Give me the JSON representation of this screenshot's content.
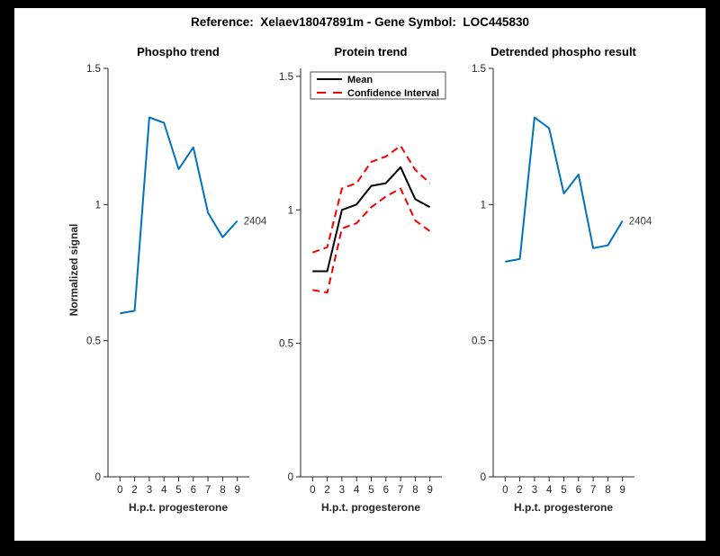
{
  "figure": {
    "title": "Reference:  Xelaev18047891m - Gene Symbol:  LOC445830",
    "background_color": "#000000",
    "canvas_color": "#ffffff"
  },
  "colors": {
    "line_blue": "#0072BD",
    "ci_red": "#F40000",
    "mean_black": "#000000",
    "axis_gray": "#262626",
    "annotation_gray": "#3d3d3d"
  },
  "chart_data": [
    {
      "type": "line",
      "title": "Phospho trend",
      "xlabel": "H.p.t. progesterone",
      "ylabel": "Normalized signal",
      "x_ticklabels": [
        "0",
        "2",
        "3",
        "4",
        "5",
        "6",
        "7",
        "8",
        "9"
      ],
      "ytick_values": [
        0,
        0.5,
        1,
        1.5
      ],
      "ytick_labels": [
        "0",
        "0.5",
        "1",
        "1.5"
      ],
      "ylim": [
        0,
        1.5
      ],
      "grid": false,
      "series": [
        {
          "name": "2404",
          "color": "#0072BD",
          "dash": "solid",
          "width": 2,
          "values": [
            0.6,
            0.61,
            1.32,
            1.3,
            1.13,
            1.21,
            0.97,
            0.88,
            0.94
          ]
        }
      ],
      "end_label": "2404"
    },
    {
      "type": "line",
      "title": "Protein trend",
      "xlabel": "H.p.t. progesterone",
      "ylabel": "",
      "x_ticklabels": [
        "0",
        "2",
        "3",
        "4",
        "5",
        "6",
        "7",
        "8",
        "9"
      ],
      "ytick_values": [
        0,
        0.5,
        1,
        1.5
      ],
      "ytick_labels": [
        "0",
        "0.5",
        "1",
        "1.5"
      ],
      "ylim": [
        0,
        1.53
      ],
      "grid": false,
      "series": [
        {
          "name": "Mean",
          "color": "#000000",
          "dash": "solid",
          "width": 2,
          "values": [
            0.77,
            0.77,
            1.0,
            1.02,
            1.09,
            1.1,
            1.16,
            1.04,
            1.01
          ]
        },
        {
          "name": "Confidence Interval upper",
          "color": "#F40000",
          "dash": "dashed",
          "width": 2,
          "values": [
            0.84,
            0.86,
            1.08,
            1.1,
            1.18,
            1.2,
            1.24,
            1.15,
            1.1
          ]
        },
        {
          "name": "Confidence Interval lower",
          "color": "#F40000",
          "dash": "dashed",
          "width": 2,
          "values": [
            0.7,
            0.69,
            0.93,
            0.95,
            1.01,
            1.05,
            1.08,
            0.96,
            0.92
          ]
        }
      ],
      "legend": {
        "position": "northwest",
        "entries": [
          {
            "label": "Mean",
            "color": "#000000",
            "dash": "solid"
          },
          {
            "label": "Confidence Interval",
            "color": "#F40000",
            "dash": "dashed"
          }
        ]
      }
    },
    {
      "type": "line",
      "title": "Detrended phospho result",
      "xlabel": "H.p.t. progesterone",
      "ylabel": "",
      "x_ticklabels": [
        "0",
        "2",
        "3",
        "4",
        "5",
        "6",
        "7",
        "8",
        "9"
      ],
      "ytick_values": [
        0,
        0.5,
        1,
        1.5
      ],
      "ytick_labels": [
        "0",
        "0.5",
        "1",
        "1.5"
      ],
      "ylim": [
        0,
        1.5
      ],
      "grid": false,
      "series": [
        {
          "name": "2404",
          "color": "#0072BD",
          "dash": "solid",
          "width": 2,
          "values": [
            0.79,
            0.8,
            1.32,
            1.28,
            1.04,
            1.11,
            0.84,
            0.85,
            0.94
          ]
        }
      ],
      "end_label": "2404"
    }
  ]
}
